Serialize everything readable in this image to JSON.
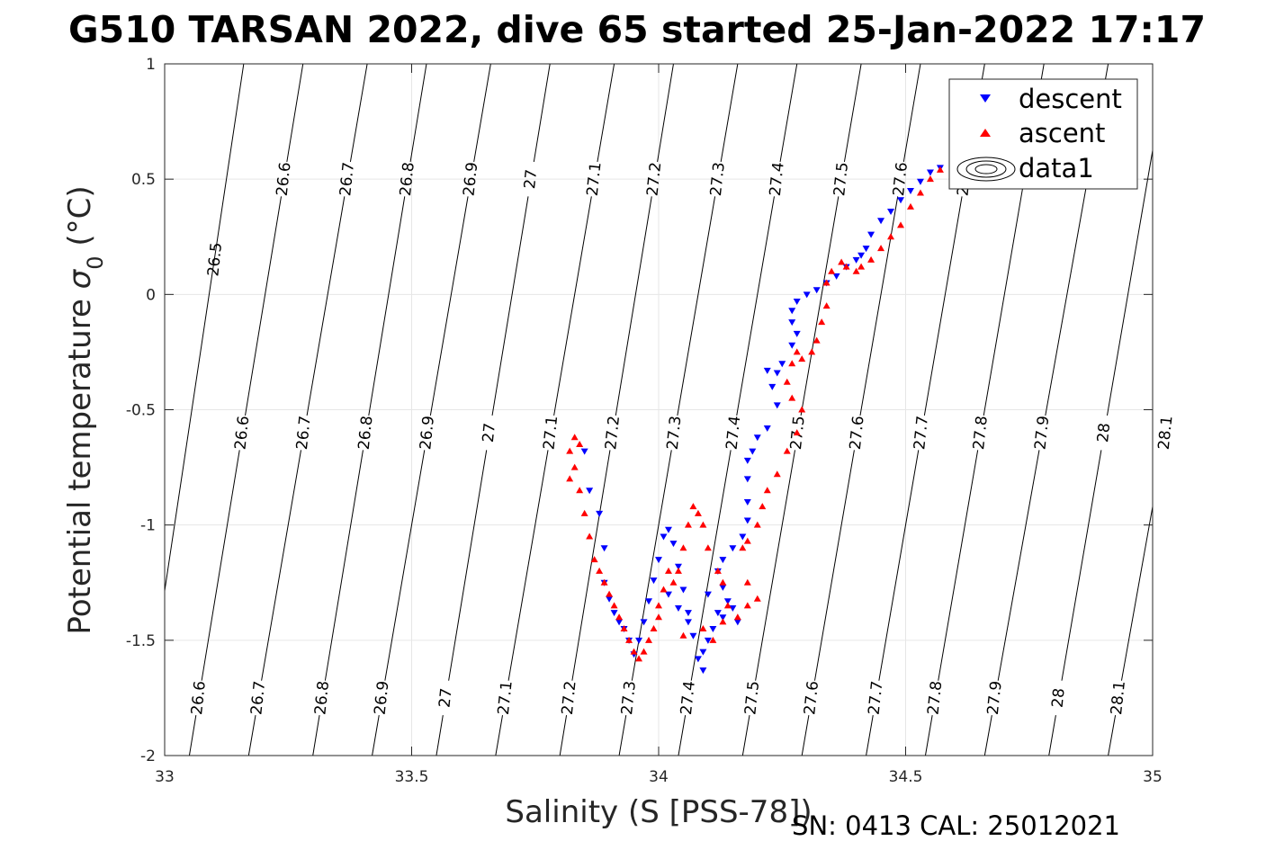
{
  "chart_data": {
    "type": "scatter",
    "title": "G510 TARSAN 2022, dive 65 started 25-Jan-2022 17:17",
    "xlabel": "Salinity (S [PSS-78])",
    "ylabel_main": "Potential temperature ",
    "ylabel_sigma": "σ",
    "ylabel_sub": "0",
    "ylabel_unit": " (°C)",
    "footer": "SN: 0413  CAL: 25012021",
    "xlim": [
      33,
      35
    ],
    "ylim": [
      -2,
      1
    ],
    "xticks": [
      33,
      33.5,
      34,
      34.5,
      35
    ],
    "xtick_labels": [
      "33",
      "33.5",
      "34",
      "34.5",
      "35"
    ],
    "yticks": [
      1,
      0.5,
      0,
      -0.5,
      -1,
      -1.5,
      -2
    ],
    "ytick_labels": [
      "1",
      "0.5",
      "0",
      "-0.5",
      "-1",
      "-1.5",
      "-2"
    ],
    "grid": true,
    "legend": {
      "placement": "top-right",
      "entries": [
        {
          "label": "descent",
          "marker": "triangle-down",
          "color": "#0000ff"
        },
        {
          "label": "ascent",
          "marker": "triangle-up",
          "color": "#ff0000"
        },
        {
          "label": "data1",
          "marker": "contour",
          "color": "#000000"
        }
      ]
    },
    "isopycnals": [
      {
        "sigma": 26.5,
        "label": "26.5",
        "s_top": 33.16,
        "s_bottom": 32.95
      },
      {
        "sigma": 26.6,
        "label": "26.6",
        "s_top": 33.28,
        "s_bottom": 33.05
      },
      {
        "sigma": 26.7,
        "label": "26.7",
        "s_top": 33.41,
        "s_bottom": 33.17
      },
      {
        "sigma": 26.8,
        "label": "26.8",
        "s_top": 33.53,
        "s_bottom": 33.3
      },
      {
        "sigma": 26.9,
        "label": "26.9",
        "s_top": 33.66,
        "s_bottom": 33.42
      },
      {
        "sigma": 27.0,
        "label": "27",
        "s_top": 33.78,
        "s_bottom": 33.55
      },
      {
        "sigma": 27.1,
        "label": "27.1",
        "s_top": 33.91,
        "s_bottom": 33.67
      },
      {
        "sigma": 27.2,
        "label": "27.2",
        "s_top": 34.03,
        "s_bottom": 33.8
      },
      {
        "sigma": 27.3,
        "label": "27.3",
        "s_top": 34.16,
        "s_bottom": 33.92
      },
      {
        "sigma": 27.4,
        "label": "27.4",
        "s_top": 34.28,
        "s_bottom": 34.04
      },
      {
        "sigma": 27.5,
        "label": "27.5",
        "s_top": 34.41,
        "s_bottom": 34.17
      },
      {
        "sigma": 27.6,
        "label": "27.6",
        "s_top": 34.53,
        "s_bottom": 34.29
      },
      {
        "sigma": 27.7,
        "label": "27.7",
        "s_top": 34.66,
        "s_bottom": 34.42
      },
      {
        "sigma": 27.8,
        "label": "27.8",
        "s_top": 34.78,
        "s_bottom": 34.54
      },
      {
        "sigma": 27.9,
        "label": "27.9",
        "s_top": 34.91,
        "s_bottom": 34.66
      },
      {
        "sigma": 28.0,
        "label": "28",
        "s_top": 35.03,
        "s_bottom": 34.79
      },
      {
        "sigma": 28.1,
        "label": "28.1",
        "s_top": 35.16,
        "s_bottom": 34.91
      }
    ],
    "isopycnal_label_rows": [
      {
        "theta": 0.5,
        "labels": [
          "26.6",
          "26.7",
          "26.8",
          "26.9",
          "27",
          "27.1",
          "27.2",
          "27.3",
          "27.4",
          "27.5",
          "27.6",
          "27.7"
        ]
      },
      {
        "theta": -0.6,
        "labels": [
          "26.6",
          "26.7",
          "26.8",
          "26.9",
          "27",
          "27.1",
          "27.2",
          "27.3",
          "27.4",
          "27.5",
          "27.6",
          "27.7",
          "27.8",
          "27.9",
          "28",
          "28.1"
        ]
      },
      {
        "theta": -1.75,
        "labels": [
          "26.6",
          "26.7",
          "26.8",
          "26.9",
          "27",
          "27.1",
          "27.2",
          "27.3",
          "27.4",
          "27.5",
          "27.6",
          "27.7",
          "27.8",
          "27.9",
          "28",
          "28.1"
        ]
      }
    ],
    "series": [
      {
        "name": "descent",
        "marker": "triangle-down",
        "color": "#0000ff",
        "points": [
          [
            34.57,
            0.55
          ],
          [
            34.55,
            0.53
          ],
          [
            34.53,
            0.49
          ],
          [
            34.51,
            0.45
          ],
          [
            34.49,
            0.41
          ],
          [
            34.47,
            0.36
          ],
          [
            34.45,
            0.32
          ],
          [
            34.43,
            0.26
          ],
          [
            34.42,
            0.2
          ],
          [
            34.41,
            0.17
          ],
          [
            34.4,
            0.15
          ],
          [
            34.38,
            0.12
          ],
          [
            34.36,
            0.08
          ],
          [
            34.34,
            0.05
          ],
          [
            34.32,
            0.02
          ],
          [
            34.3,
            0.0
          ],
          [
            34.28,
            -0.03
          ],
          [
            34.27,
            -0.07
          ],
          [
            34.27,
            -0.12
          ],
          [
            34.28,
            -0.17
          ],
          [
            34.27,
            -0.22
          ],
          [
            34.25,
            -0.3
          ],
          [
            34.24,
            -0.34
          ],
          [
            34.22,
            -0.33
          ],
          [
            34.23,
            -0.4
          ],
          [
            34.24,
            -0.48
          ],
          [
            34.22,
            -0.58
          ],
          [
            34.2,
            -0.62
          ],
          [
            34.19,
            -0.68
          ],
          [
            34.18,
            -0.72
          ],
          [
            34.18,
            -0.8
          ],
          [
            34.18,
            -0.9
          ],
          [
            34.18,
            -0.98
          ],
          [
            34.17,
            -1.05
          ],
          [
            34.15,
            -1.1
          ],
          [
            34.13,
            -1.15
          ],
          [
            34.12,
            -1.2
          ],
          [
            34.13,
            -1.27
          ],
          [
            34.14,
            -1.33
          ],
          [
            34.13,
            -1.4
          ],
          [
            34.11,
            -1.45
          ],
          [
            34.1,
            -1.5
          ],
          [
            34.09,
            -1.55
          ],
          [
            34.09,
            -1.63
          ],
          [
            34.08,
            -1.58
          ],
          [
            34.07,
            -1.48
          ],
          [
            34.06,
            -1.38
          ],
          [
            34.05,
            -1.28
          ],
          [
            34.04,
            -1.18
          ],
          [
            34.03,
            -1.08
          ],
          [
            34.02,
            -1.02
          ],
          [
            34.01,
            -1.05
          ],
          [
            34.0,
            -1.15
          ],
          [
            33.99,
            -1.24
          ],
          [
            33.98,
            -1.33
          ],
          [
            33.97,
            -1.42
          ],
          [
            33.96,
            -1.5
          ],
          [
            33.95,
            -1.56
          ],
          [
            33.94,
            -1.5
          ],
          [
            33.93,
            -1.45
          ],
          [
            33.92,
            -1.42
          ],
          [
            33.91,
            -1.38
          ],
          [
            33.9,
            -1.32
          ],
          [
            33.89,
            -1.25
          ],
          [
            33.89,
            -1.1
          ],
          [
            33.88,
            -0.95
          ],
          [
            33.86,
            -0.85
          ],
          [
            33.85,
            -0.68
          ],
          [
            34.06,
            -1.42
          ],
          [
            34.04,
            -1.36
          ],
          [
            34.02,
            -1.3
          ],
          [
            34.1,
            -1.3
          ],
          [
            34.12,
            -1.38
          ],
          [
            34.15,
            -1.36
          ],
          [
            34.16,
            -1.42
          ]
        ]
      },
      {
        "name": "ascent",
        "marker": "triangle-up",
        "color": "#ff0000",
        "points": [
          [
            34.57,
            0.54
          ],
          [
            34.55,
            0.5
          ],
          [
            34.53,
            0.44
          ],
          [
            34.51,
            0.38
          ],
          [
            34.49,
            0.3
          ],
          [
            34.47,
            0.25
          ],
          [
            34.45,
            0.2
          ],
          [
            34.43,
            0.15
          ],
          [
            34.41,
            0.12
          ],
          [
            34.4,
            0.1
          ],
          [
            34.38,
            0.12
          ],
          [
            34.37,
            0.14
          ],
          [
            34.35,
            0.1
          ],
          [
            34.34,
            0.05
          ],
          [
            34.34,
            -0.05
          ],
          [
            34.33,
            -0.12
          ],
          [
            34.32,
            -0.2
          ],
          [
            34.31,
            -0.25
          ],
          [
            34.29,
            -0.28
          ],
          [
            34.28,
            -0.25
          ],
          [
            34.27,
            -0.3
          ],
          [
            34.26,
            -0.38
          ],
          [
            34.27,
            -0.45
          ],
          [
            34.29,
            -0.5
          ],
          [
            34.28,
            -0.6
          ],
          [
            34.26,
            -0.68
          ],
          [
            34.24,
            -0.78
          ],
          [
            34.22,
            -0.85
          ],
          [
            34.21,
            -0.92
          ],
          [
            34.2,
            -1.0
          ],
          [
            34.18,
            -1.07
          ],
          [
            34.17,
            -1.1
          ],
          [
            34.18,
            -1.25
          ],
          [
            34.18,
            -1.35
          ],
          [
            34.16,
            -1.4
          ],
          [
            34.14,
            -1.35
          ],
          [
            34.13,
            -1.25
          ],
          [
            34.12,
            -1.2
          ],
          [
            34.1,
            -1.1
          ],
          [
            34.09,
            -1.0
          ],
          [
            34.08,
            -0.95
          ],
          [
            34.07,
            -0.92
          ],
          [
            34.06,
            -1.0
          ],
          [
            34.05,
            -1.1
          ],
          [
            34.04,
            -1.2
          ],
          [
            34.03,
            -1.25
          ],
          [
            34.02,
            -1.2
          ],
          [
            34.01,
            -1.28
          ],
          [
            34.0,
            -1.35
          ],
          [
            33.99,
            -1.45
          ],
          [
            33.98,
            -1.5
          ],
          [
            33.97,
            -1.55
          ],
          [
            33.96,
            -1.58
          ],
          [
            33.95,
            -1.55
          ],
          [
            33.94,
            -1.5
          ],
          [
            33.93,
            -1.45
          ],
          [
            33.92,
            -1.4
          ],
          [
            33.91,
            -1.35
          ],
          [
            33.9,
            -1.3
          ],
          [
            33.89,
            -1.25
          ],
          [
            33.88,
            -1.2
          ],
          [
            33.87,
            -1.15
          ],
          [
            33.86,
            -1.05
          ],
          [
            33.85,
            -0.95
          ],
          [
            33.84,
            -0.85
          ],
          [
            33.83,
            -0.75
          ],
          [
            33.82,
            -0.68
          ],
          [
            33.83,
            -0.62
          ],
          [
            33.84,
            -0.65
          ],
          [
            33.82,
            -0.8
          ],
          [
            34.09,
            -1.45
          ],
          [
            34.11,
            -1.5
          ],
          [
            34.13,
            -1.42
          ],
          [
            34.2,
            -1.32
          ],
          [
            34.05,
            -1.48
          ],
          [
            34.0,
            -1.4
          ]
        ]
      }
    ]
  }
}
